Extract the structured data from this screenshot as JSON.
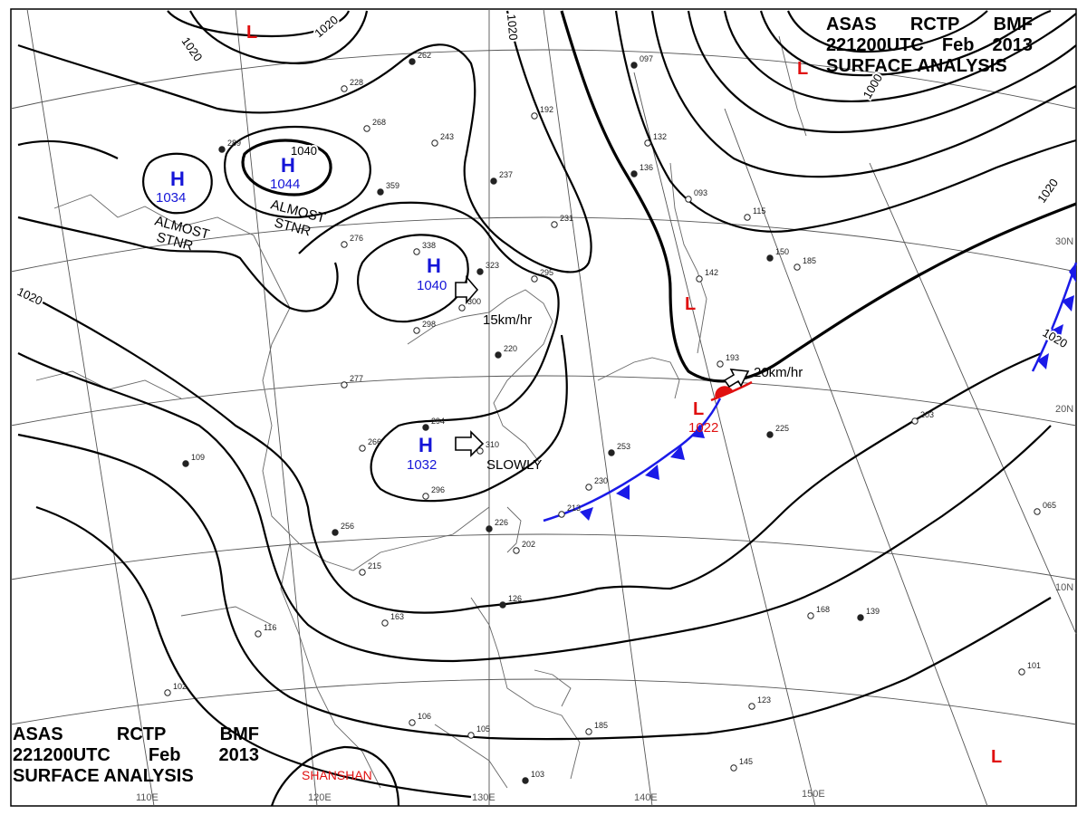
{
  "header": {
    "line1": [
      "ASAS",
      "RCTP",
      "BMF"
    ],
    "line2": [
      "221200UTC",
      "Feb",
      "2013"
    ],
    "line3": "SURFACE  ANALYSIS"
  },
  "isobar_labels": [
    "1020",
    "1020",
    "1020",
    "1040",
    "1000",
    "1020",
    "1020",
    "1020"
  ],
  "highs": [
    {
      "symbol": "H",
      "pressure": "1034"
    },
    {
      "symbol": "H",
      "pressure": "1044"
    },
    {
      "symbol": "H",
      "pressure": "1040"
    },
    {
      "symbol": "H",
      "pressure": "1032"
    }
  ],
  "lows": [
    {
      "symbol": "L",
      "pressure": ""
    },
    {
      "symbol": "L",
      "pressure": ""
    },
    {
      "symbol": "L",
      "pressure": ""
    },
    {
      "symbol": "L",
      "pressure": "1022"
    },
    {
      "symbol": "L",
      "pressure": ""
    }
  ],
  "annotations": {
    "almost_stnr_1": [
      "ALMOST",
      "STNR"
    ],
    "almost_stnr_2": [
      "ALMOST",
      "STNR"
    ],
    "motion_1": "15km/hr",
    "motion_2": "20km/hr",
    "motion_3": "SLOWLY"
  },
  "typhoon_name": "SHANSHAN",
  "longitude_labels": [
    "110E",
    "120E",
    "130E",
    "140E",
    "150E"
  ],
  "latitude_labels": [
    "30N",
    "20N",
    "10N"
  ],
  "station_values": [
    "262",
    "243",
    "192",
    "237",
    "231",
    "295",
    "323",
    "338",
    "276",
    "359",
    "268",
    "228",
    "289",
    "300",
    "298",
    "220",
    "277",
    "266",
    "294",
    "296",
    "310",
    "253",
    "230",
    "213",
    "226",
    "202",
    "215",
    "256",
    "163",
    "116",
    "126",
    "106",
    "105",
    "103",
    "185",
    "145",
    "109",
    "102",
    "168",
    "139",
    "101",
    "123",
    "225",
    "203",
    "185",
    "150",
    "142",
    "193",
    "136",
    "132",
    "093",
    "097",
    "115",
    "065"
  ],
  "colors": {
    "isobar": "#000000",
    "high_center": "#1515d8",
    "low_center": "#e01010",
    "cold_front": "#1a1ae8",
    "warm_front": "#e01010",
    "graticule": "#555555",
    "coast": "#666666"
  }
}
